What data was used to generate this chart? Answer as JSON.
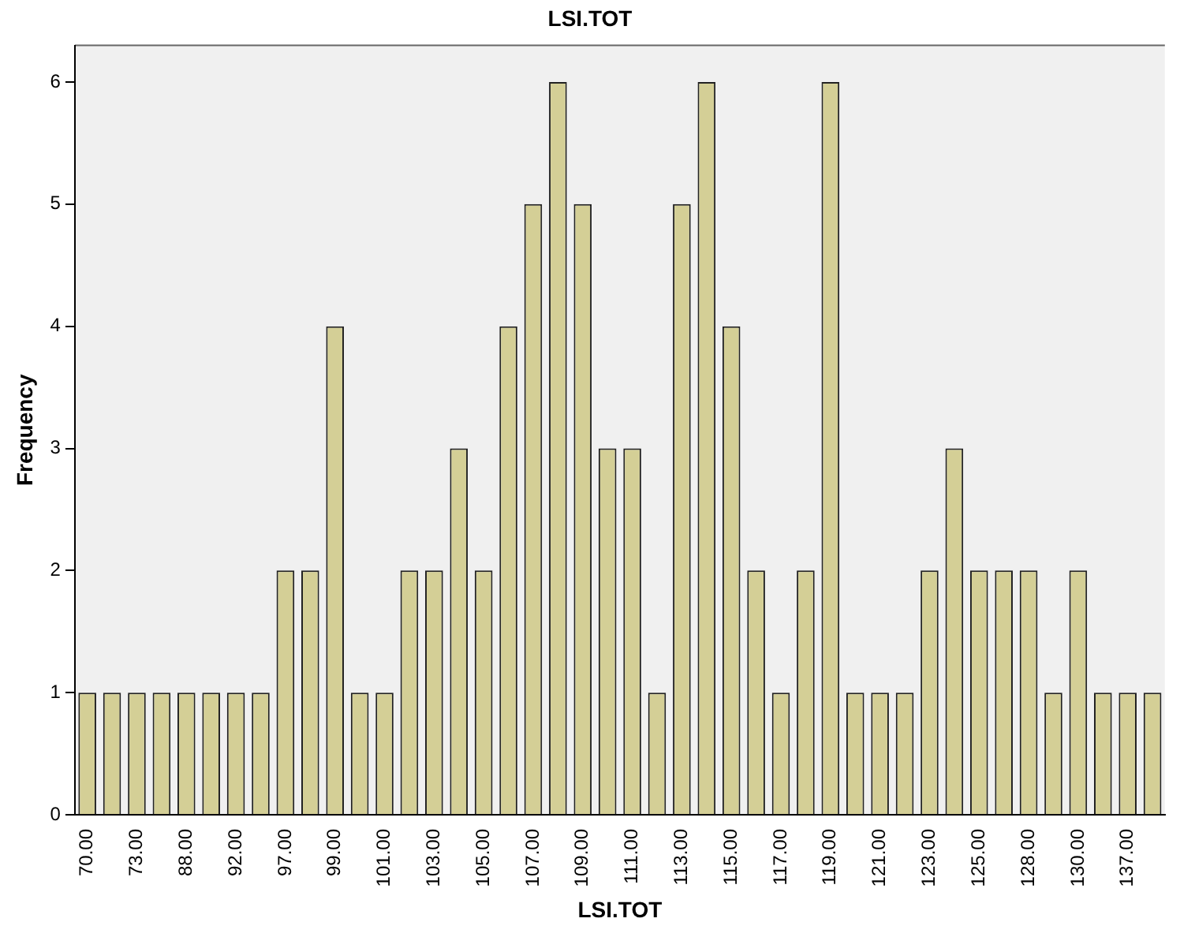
{
  "chart_data": {
    "type": "bar",
    "title": "LSI.TOT",
    "xlabel": "LSI.TOT",
    "ylabel": "Frequency",
    "categories": [
      "70.00",
      null,
      "73.00",
      null,
      "88.00",
      null,
      "92.00",
      null,
      "97.00",
      null,
      "99.00",
      null,
      "101.00",
      null,
      "103.00",
      null,
      "105.00",
      null,
      "107.00",
      null,
      "109.00",
      null,
      "111.00",
      null,
      "113.00",
      null,
      "115.00",
      null,
      "117.00",
      null,
      "119.00",
      null,
      "121.00",
      null,
      "123.00",
      null,
      "125.00",
      null,
      "128.00",
      null,
      "130.00",
      null,
      "137.00",
      null
    ],
    "values": [
      1,
      1,
      1,
      1,
      1,
      1,
      1,
      1,
      2,
      2,
      4,
      1,
      1,
      2,
      2,
      3,
      2,
      4,
      5,
      6,
      5,
      3,
      3,
      1,
      5,
      6,
      4,
      2,
      1,
      2,
      6,
      1,
      1,
      1,
      2,
      3,
      2,
      2,
      2,
      1,
      2,
      1,
      1,
      1
    ],
    "color": "#d4cf96",
    "ylim": [
      0,
      6.3
    ],
    "yticks": [
      0,
      1,
      2,
      3,
      4,
      5,
      6
    ],
    "grid": false,
    "legend": false
  }
}
